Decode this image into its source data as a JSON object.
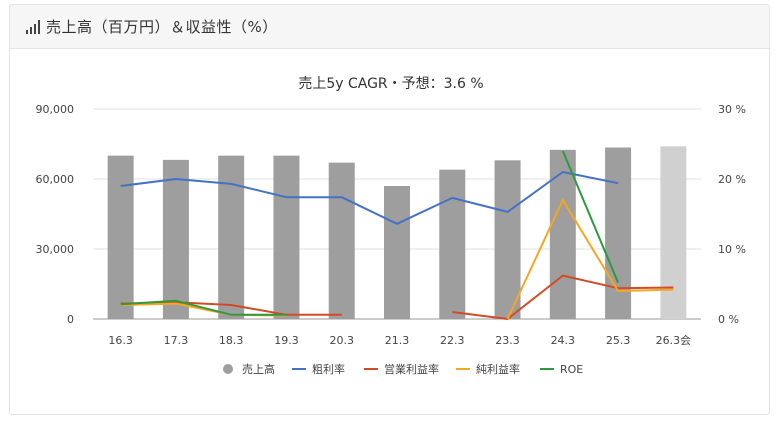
{
  "panel": {
    "title": "売上高（百万円）＆収益性（%）"
  },
  "chart_data": {
    "type": "bar",
    "title": "売上5y CAGR・予想：3.6 %",
    "categories": [
      "16.3",
      "17.3",
      "18.3",
      "19.3",
      "20.3",
      "21.3",
      "22.3",
      "23.3",
      "24.3",
      "25.3",
      "26.3会"
    ],
    "left_axis": {
      "min": 0,
      "max": 90000,
      "ticks": [
        "0",
        "30,000",
        "60,000",
        "90,000"
      ],
      "tick_values": [
        0,
        30000,
        60000,
        90000
      ]
    },
    "right_axis": {
      "min": 0,
      "max": 30,
      "ticks": [
        "0 %",
        "10 %",
        "20 %",
        "30 %"
      ],
      "tick_values": [
        0,
        10,
        20,
        30
      ]
    },
    "grid": true,
    "legend_position": "bottom",
    "series": [
      {
        "name": "売上高",
        "kind": "bar",
        "axis": "left",
        "color": "#9e9e9e",
        "forecast_color": "#d0d0d0",
        "values": [
          70000,
          68200,
          70000,
          70000,
          67000,
          57000,
          64000,
          68000,
          72500,
          73500,
          74000
        ]
      },
      {
        "name": "粗利率",
        "kind": "line",
        "axis": "right",
        "color": "#4472c4",
        "values": [
          19.0,
          20.0,
          19.3,
          17.4,
          17.4,
          13.6,
          17.3,
          15.3,
          21.0,
          19.4,
          null
        ]
      },
      {
        "name": "営業利益率",
        "kind": "line",
        "axis": "right",
        "color": "#d24a28",
        "values": [
          2.2,
          2.4,
          2.0,
          0.6,
          0.6,
          null,
          1.0,
          0.0,
          6.2,
          4.4,
          4.5
        ]
      },
      {
        "name": "純利益率",
        "kind": "line",
        "axis": "right",
        "color": "#f5a623",
        "values": [
          2.0,
          2.2,
          0.6,
          0.5,
          null,
          null,
          null,
          0.0,
          17.0,
          4.0,
          4.2
        ]
      },
      {
        "name": "ROE",
        "kind": "line",
        "axis": "right",
        "color": "#2e9a3e",
        "values": [
          2.1,
          2.6,
          0.6,
          0.6,
          null,
          null,
          null,
          null,
          24.0,
          5.2,
          null
        ]
      }
    ]
  }
}
